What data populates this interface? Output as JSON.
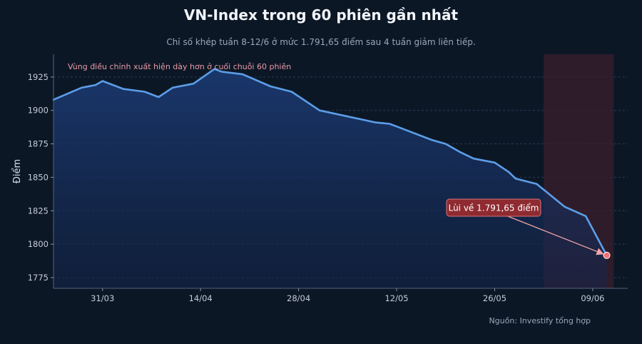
{
  "title": "VN-Index trong 60 phiên gần nhất",
  "subtitle": "Chỉ số khép tuần 8-12/6 ở mức 1.791,65 điểm sau 4 tuần giảm liên tiếp.",
  "source": "Nguồn: Investify tổng hợp",
  "colors": {
    "background": "#0c1726",
    "line": "#5c9ee8",
    "area": "#1a3566",
    "highlight_band": "#3a1f2e",
    "annotation": "#8e2a30",
    "marker": "#f36f72"
  },
  "chart_data": {
    "type": "area",
    "title": "VN-Index trong 60 phiên gần nhất",
    "xlabel": "",
    "ylabel": "Điểm",
    "ylim": [
      1767,
      1942
    ],
    "yticks": [
      1775,
      1800,
      1825,
      1850,
      1875,
      1900,
      1925
    ],
    "grid": true,
    "xtick_labels": [
      "31/03",
      "14/04",
      "28/04",
      "12/05",
      "26/05",
      "09/06"
    ],
    "xtick_dates": [
      "2026-03-31",
      "2026-04-14",
      "2026-04-28",
      "2026-05-12",
      "2026-05-26",
      "2026-06-09"
    ],
    "x_range": [
      "2026-03-24",
      "2026-06-14"
    ],
    "series": [
      {
        "x": [
          "2026-03-24",
          "2026-03-28",
          "2026-03-30",
          "2026-03-31",
          "2026-04-03",
          "2026-04-06",
          "2026-04-08",
          "2026-04-10",
          "2026-04-13",
          "2026-04-16",
          "2026-04-17",
          "2026-04-20",
          "2026-04-24",
          "2026-04-27",
          "2026-05-01",
          "2026-05-09",
          "2026-05-11",
          "2026-05-12",
          "2026-05-17",
          "2026-05-19",
          "2026-05-21",
          "2026-05-23",
          "2026-05-26",
          "2026-05-28",
          "2026-05-29",
          "2026-06-01",
          "2026-06-05",
          "2026-06-08",
          "2026-06-11"
        ],
        "y": [
          1908,
          1917,
          1919,
          1922,
          1916,
          1914,
          1910,
          1917,
          1920,
          1931,
          1929,
          1927,
          1918,
          1914,
          1900,
          1891,
          1890,
          1888,
          1878,
          1875,
          1869,
          1864,
          1861,
          1854,
          1849,
          1845,
          1828,
          1821,
          1791.65
        ]
      }
    ],
    "highlight_region": {
      "x_start": "2026-06-02",
      "x_end": "2026-06-12",
      "label": "Vùng điều chỉnh xuất hiện dày hơn ở cuối chuỗi 60 phiên"
    },
    "annotation": {
      "text": "Lùi về 1.791,65 điểm",
      "x": "2026-06-11",
      "y": 1791.65
    }
  }
}
